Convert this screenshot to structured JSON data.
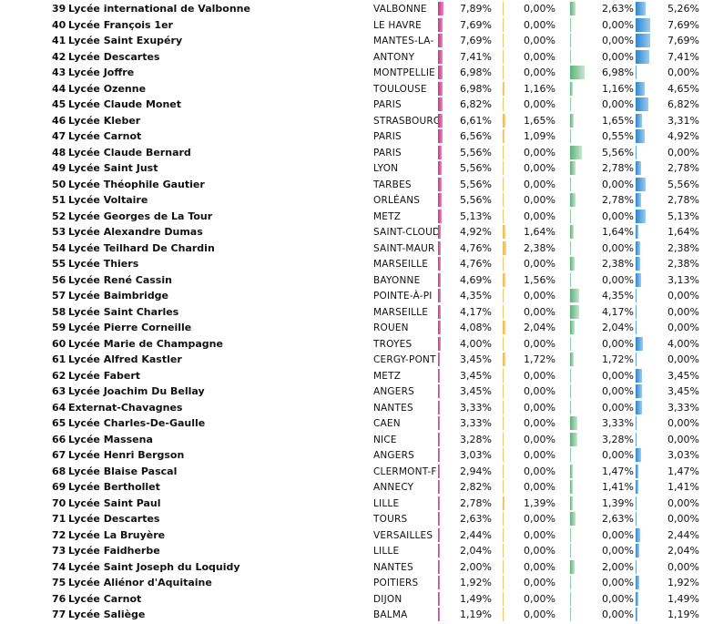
{
  "colors": {
    "col_a": "#cf2f86",
    "col_b": "#f3b344",
    "col_c": "#5db07a",
    "col_d": "#2a86cf"
  },
  "rows": [
    {
      "rank": "39",
      "name": "Lycée international de Valbonne",
      "city": "VALBONNE",
      "v1": "7,89%",
      "v2": "0,00%",
      "v3": "2,63%",
      "v4": "5,26%"
    },
    {
      "rank": "40",
      "name": "Lycée François 1er",
      "city": "LE HAVRE",
      "v1": "7,69%",
      "v2": "0,00%",
      "v3": "0,00%",
      "v4": "7,69%"
    },
    {
      "rank": "41",
      "name": "Lycée Saint Exupéry",
      "city": "MANTES-LA-",
      "v1": "7,69%",
      "v2": "0,00%",
      "v3": "0,00%",
      "v4": "7,69%"
    },
    {
      "rank": "42",
      "name": "Lycée Descartes",
      "city": "ANTONY",
      "v1": "7,41%",
      "v2": "0,00%",
      "v3": "0,00%",
      "v4": "7,41%"
    },
    {
      "rank": "43",
      "name": "Lycée Joffre",
      "city": "MONTPELLIE",
      "v1": "6,98%",
      "v2": "0,00%",
      "v3": "6,98%",
      "v4": "0,00%"
    },
    {
      "rank": "44",
      "name": "Lycée Ozenne",
      "city": "TOULOUSE",
      "v1": "6,98%",
      "v2": "1,16%",
      "v3": "1,16%",
      "v4": "4,65%"
    },
    {
      "rank": "45",
      "name": "Lycée Claude Monet",
      "city": "PARIS",
      "v1": "6,82%",
      "v2": "0,00%",
      "v3": "0,00%",
      "v4": "6,82%"
    },
    {
      "rank": "46",
      "name": "Lycée Kleber",
      "city": "STRASBOURG",
      "v1": "6,61%",
      "v2": "1,65%",
      "v3": "1,65%",
      "v4": "3,31%"
    },
    {
      "rank": "47",
      "name": "Lycée Carnot",
      "city": "PARIS",
      "v1": "6,56%",
      "v2": "1,09%",
      "v3": "0,55%",
      "v4": "4,92%"
    },
    {
      "rank": "48",
      "name": "Lycée Claude Bernard",
      "city": "PARIS",
      "v1": "5,56%",
      "v2": "0,00%",
      "v3": "5,56%",
      "v4": "0,00%"
    },
    {
      "rank": "49",
      "name": "Lycée Saint Just",
      "city": "LYON",
      "v1": "5,56%",
      "v2": "0,00%",
      "v3": "2,78%",
      "v4": "2,78%"
    },
    {
      "rank": "50",
      "name": "Lycée Théophile Gautier",
      "city": "TARBES",
      "v1": "5,56%",
      "v2": "0,00%",
      "v3": "0,00%",
      "v4": "5,56%"
    },
    {
      "rank": "51",
      "name": "Lycée Voltaire",
      "city": "ORLÉANS",
      "v1": "5,56%",
      "v2": "0,00%",
      "v3": "2,78%",
      "v4": "2,78%"
    },
    {
      "rank": "52",
      "name": "Lycée Georges de La Tour",
      "city": "METZ",
      "v1": "5,13%",
      "v2": "0,00%",
      "v3": "0,00%",
      "v4": "5,13%"
    },
    {
      "rank": "53",
      "name": "Lycée Alexandre Dumas",
      "city": "SAINT-CLOUD",
      "v1": "4,92%",
      "v2": "1,64%",
      "v3": "1,64%",
      "v4": "1,64%"
    },
    {
      "rank": "54",
      "name": "Lycée Teilhard De Chardin",
      "city": "SAINT-MAUR",
      "v1": "4,76%",
      "v2": "2,38%",
      "v3": "0,00%",
      "v4": "2,38%"
    },
    {
      "rank": "55",
      "name": "Lycée Thiers",
      "city": "MARSEILLE",
      "v1": "4,76%",
      "v2": "0,00%",
      "v3": "2,38%",
      "v4": "2,38%"
    },
    {
      "rank": "56",
      "name": "Lycée René Cassin",
      "city": "BAYONNE",
      "v1": "4,69%",
      "v2": "1,56%",
      "v3": "0,00%",
      "v4": "3,13%"
    },
    {
      "rank": "57",
      "name": "Lycée  Baimbridge",
      "city": "POINTE-À-PI",
      "v1": "4,35%",
      "v2": "0,00%",
      "v3": "4,35%",
      "v4": "0,00%"
    },
    {
      "rank": "58",
      "name": "Lycée Saint Charles",
      "city": "MARSEILLE",
      "v1": "4,17%",
      "v2": "0,00%",
      "v3": "4,17%",
      "v4": "0,00%"
    },
    {
      "rank": "59",
      "name": "Lycée Pierre Corneille",
      "city": "ROUEN",
      "v1": "4,08%",
      "v2": "2,04%",
      "v3": "2,04%",
      "v4": "0,00%"
    },
    {
      "rank": "60",
      "name": "Lycée Marie de Champagne",
      "city": "TROYES",
      "v1": "4,00%",
      "v2": "0,00%",
      "v3": "0,00%",
      "v4": "4,00%"
    },
    {
      "rank": "61",
      "name": "Lycée Alfred Kastler",
      "city": "CERGY-PONT",
      "v1": "3,45%",
      "v2": "1,72%",
      "v3": "1,72%",
      "v4": "0,00%"
    },
    {
      "rank": "62",
      "name": "Lycée Fabert",
      "city": "METZ",
      "v1": "3,45%",
      "v2": "0,00%",
      "v3": "0,00%",
      "v4": "3,45%"
    },
    {
      "rank": "63",
      "name": "Lycée Joachim Du Bellay",
      "city": "ANGERS",
      "v1": "3,45%",
      "v2": "0,00%",
      "v3": "0,00%",
      "v4": "3,45%"
    },
    {
      "rank": "64",
      "name": "Externat-Chavagnes",
      "city": "NANTES",
      "v1": "3,33%",
      "v2": "0,00%",
      "v3": "0,00%",
      "v4": "3,33%"
    },
    {
      "rank": "65",
      "name": "Lycée Charles-De-Gaulle",
      "city": "CAEN",
      "v1": "3,33%",
      "v2": "0,00%",
      "v3": "3,33%",
      "v4": "0,00%"
    },
    {
      "rank": "66",
      "name": "Lycée Massena",
      "city": "NICE",
      "v1": "3,28%",
      "v2": "0,00%",
      "v3": "3,28%",
      "v4": "0,00%"
    },
    {
      "rank": "67",
      "name": "Lycée Henri Bergson",
      "city": "ANGERS",
      "v1": "3,03%",
      "v2": "0,00%",
      "v3": "0,00%",
      "v4": "3,03%"
    },
    {
      "rank": "68",
      "name": "Lycée Blaise Pascal",
      "city": "CLERMONT-F",
      "v1": "2,94%",
      "v2": "0,00%",
      "v3": "1,47%",
      "v4": "1,47%"
    },
    {
      "rank": "69",
      "name": "Lycée Berthollet",
      "city": "ANNECY",
      "v1": "2,82%",
      "v2": "0,00%",
      "v3": "1,41%",
      "v4": "1,41%"
    },
    {
      "rank": "70",
      "name": "Lycée Saint Paul",
      "city": "LILLE",
      "v1": "2,78%",
      "v2": "1,39%",
      "v3": "1,39%",
      "v4": "0,00%"
    },
    {
      "rank": "71",
      "name": "Lycée Descartes",
      "city": "TOURS",
      "v1": "2,63%",
      "v2": "0,00%",
      "v3": "2,63%",
      "v4": "0,00%"
    },
    {
      "rank": "72",
      "name": "Lycée La Bruyère",
      "city": "VERSAILLES",
      "v1": "2,44%",
      "v2": "0,00%",
      "v3": "0,00%",
      "v4": "2,44%"
    },
    {
      "rank": "73",
      "name": "Lycée Faidherbe",
      "city": "LILLE",
      "v1": "2,04%",
      "v2": "0,00%",
      "v3": "0,00%",
      "v4": "2,04%"
    },
    {
      "rank": "74",
      "name": "Lycée Saint Joseph du Loquidy",
      "city": "NANTES",
      "v1": "2,00%",
      "v2": "0,00%",
      "v3": "2,00%",
      "v4": "0,00%"
    },
    {
      "rank": "75",
      "name": "Lycée Aliénor d'Aquitaine",
      "city": "POITIERS",
      "v1": "1,92%",
      "v2": "0,00%",
      "v3": "0,00%",
      "v4": "1,92%"
    },
    {
      "rank": "76",
      "name": "Lycée Carnot",
      "city": "DIJON",
      "v1": "1,49%",
      "v2": "0,00%",
      "v3": "0,00%",
      "v4": "1,49%"
    },
    {
      "rank": "77",
      "name": "Lycée Saliège",
      "city": "BALMA",
      "v1": "1,19%",
      "v2": "0,00%",
      "v3": "0,00%",
      "v4": "1,19%"
    }
  ]
}
